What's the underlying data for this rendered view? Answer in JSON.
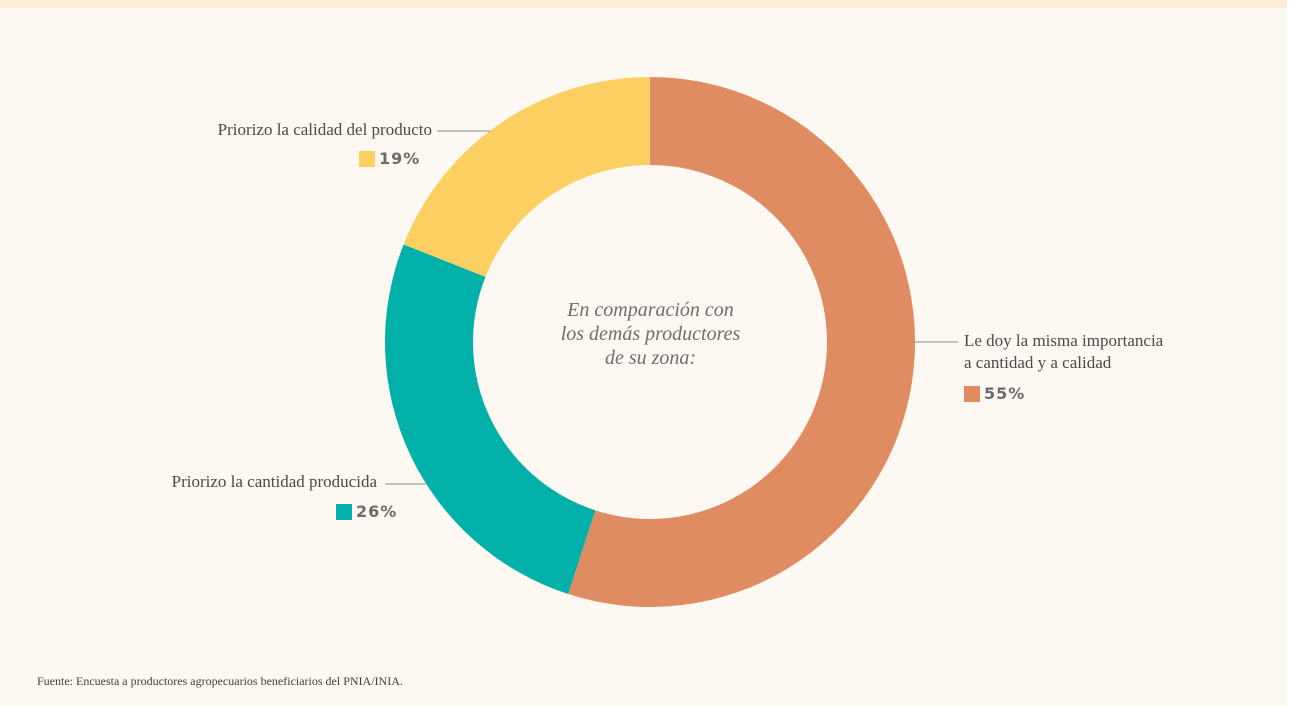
{
  "chart_data": {
    "type": "pie",
    "center_text": [
      "En comparación con",
      "los demás productores",
      "de su zona:"
    ],
    "slices": [
      {
        "label": [
          "Le doy la misma importancia",
          "a cantidad y a calidad"
        ],
        "value": 55,
        "value_label": "55%",
        "color": "#e08c62"
      },
      {
        "label": [
          "Priorizo la cantidad producida"
        ],
        "value": 26,
        "value_label": "26%",
        "color": "#00b0a9"
      },
      {
        "label": [
          "Priorizo la calidad del producto"
        ],
        "value": 19,
        "value_label": "19%",
        "color": "#fbcf62"
      }
    ]
  },
  "source_note": "Fuente: Encuesta a productores agropecuarios beneficiarios del PNIA/INIA."
}
